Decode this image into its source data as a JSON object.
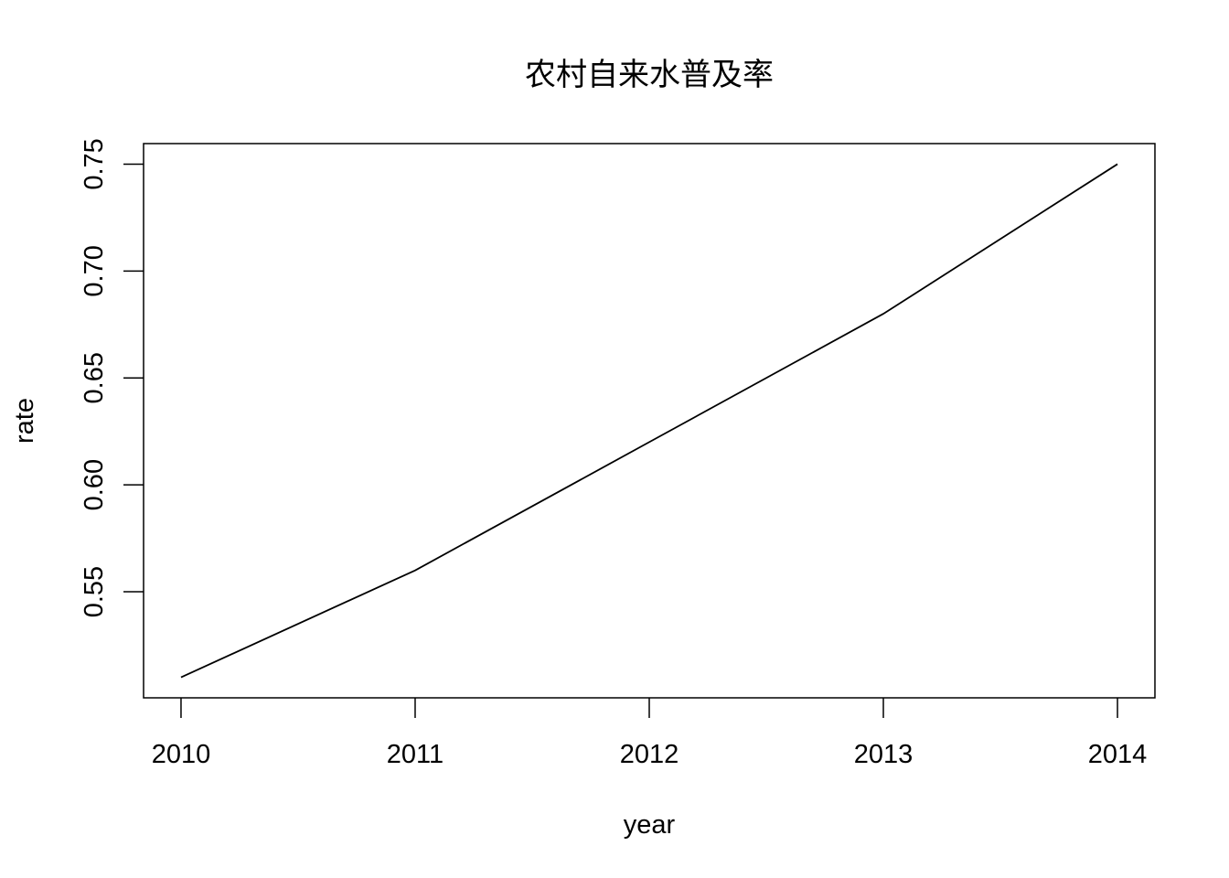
{
  "chart_data": {
    "type": "line",
    "title": "农村自来水普及率",
    "xlabel": "year",
    "ylabel": "rate",
    "x": [
      2010,
      2011,
      2012,
      2013,
      2014
    ],
    "series": [
      {
        "values": [
          0.51,
          0.56,
          0.62,
          0.68,
          0.75
        ]
      }
    ],
    "x_ticks": [
      "2010",
      "2011",
      "2012",
      "2013",
      "2014"
    ],
    "y_ticks": [
      "0.55",
      "0.60",
      "0.65",
      "0.70",
      "0.75"
    ],
    "xlim": [
      2009.84,
      2014.16
    ],
    "ylim": [
      0.5004,
      0.7596
    ],
    "grid": false,
    "line_color": "#000000"
  }
}
